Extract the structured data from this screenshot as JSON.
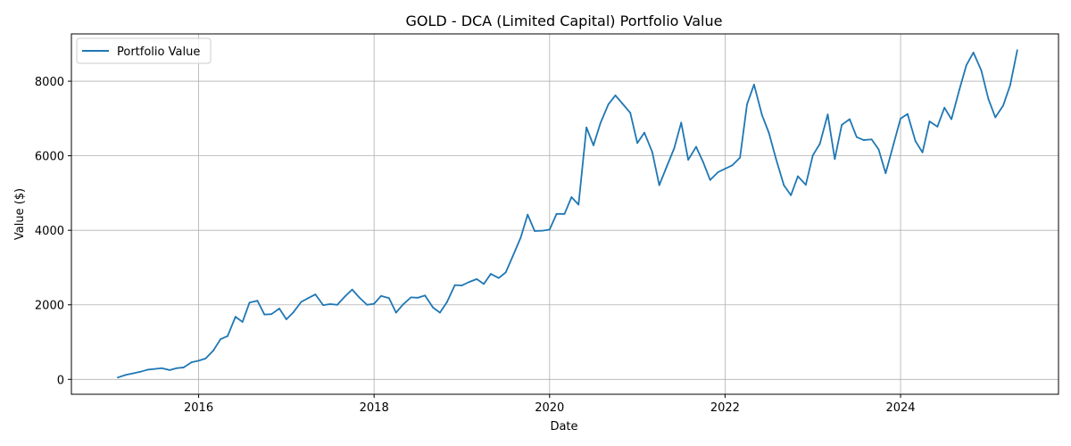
{
  "chart_data": {
    "type": "line",
    "title": "GOLD - DCA (Limited Capital) Portfolio Value",
    "xlabel": "Date",
    "ylabel": "Value ($)",
    "xlim": [
      2014.55,
      2025.8
    ],
    "ylim": [
      -400,
      9270
    ],
    "x_ticks": [
      2016,
      2018,
      2020,
      2022,
      2024
    ],
    "x_tick_labels": [
      "2016",
      "2018",
      "2020",
      "2022",
      "2024"
    ],
    "y_ticks": [
      0,
      2000,
      4000,
      6000,
      8000
    ],
    "y_tick_labels": [
      "0",
      "2000",
      "4000",
      "6000",
      "8000"
    ],
    "grid": true,
    "legend_position": "top-left",
    "series_color": "#1f77b4",
    "series": [
      {
        "name": "Portfolio Value",
        "x": [
          2015.08,
          2015.17,
          2015.25,
          2015.33,
          2015.42,
          2015.5,
          2015.58,
          2015.67,
          2015.75,
          2015.83,
          2015.92,
          2016.0,
          2016.08,
          2016.17,
          2016.25,
          2016.33,
          2016.42,
          2016.5,
          2016.58,
          2016.67,
          2016.75,
          2016.83,
          2016.92,
          2017.0,
          2017.08,
          2017.17,
          2017.25,
          2017.33,
          2017.42,
          2017.5,
          2017.58,
          2017.67,
          2017.75,
          2017.83,
          2017.92,
          2018.0,
          2018.08,
          2018.17,
          2018.25,
          2018.33,
          2018.42,
          2018.5,
          2018.58,
          2018.67,
          2018.75,
          2018.83,
          2018.92,
          2019.0,
          2019.08,
          2019.17,
          2019.25,
          2019.33,
          2019.42,
          2019.5,
          2019.58,
          2019.67,
          2019.75,
          2019.83,
          2019.92,
          2020.0,
          2020.08,
          2020.17,
          2020.25,
          2020.33,
          2020.42,
          2020.5,
          2020.58,
          2020.67,
          2020.75,
          2020.83,
          2020.92,
          2021.0,
          2021.08,
          2021.17,
          2021.25,
          2021.33,
          2021.42,
          2021.5,
          2021.58,
          2021.67,
          2021.75,
          2021.83,
          2021.92,
          2022.0,
          2022.08,
          2022.17,
          2022.25,
          2022.33,
          2022.42,
          2022.5,
          2022.58,
          2022.67,
          2022.75,
          2022.83,
          2022.92,
          2023.0,
          2023.08,
          2023.17,
          2023.25,
          2023.33,
          2023.42,
          2023.5,
          2023.58,
          2023.67,
          2023.75,
          2023.83,
          2023.92,
          2024.0,
          2024.08,
          2024.17,
          2024.25,
          2024.33,
          2024.42,
          2024.5,
          2024.58,
          2024.67,
          2024.75,
          2024.83,
          2024.92,
          2025.0,
          2025.08,
          2025.17,
          2025.25,
          2025.33
        ],
        "values": [
          50,
          120,
          160,
          200,
          260,
          280,
          300,
          250,
          300,
          320,
          460,
          500,
          560,
          780,
          1080,
          1160,
          1680,
          1540,
          2060,
          2110,
          1740,
          1750,
          1900,
          1610,
          1800,
          2080,
          2180,
          2280,
          1990,
          2020,
          2000,
          2230,
          2410,
          2200,
          2000,
          2030,
          2240,
          2180,
          1790,
          2010,
          2200,
          2190,
          2250,
          1930,
          1790,
          2070,
          2530,
          2520,
          2610,
          2690,
          2560,
          2830,
          2720,
          2870,
          3300,
          3800,
          4420,
          3980,
          3990,
          4020,
          4440,
          4440,
          4890,
          4690,
          6760,
          6280,
          6880,
          7380,
          7620,
          7400,
          7150,
          6340,
          6620,
          6100,
          5210,
          5680,
          6200,
          6890,
          5890,
          6240,
          5830,
          5350,
          5560,
          5650,
          5740,
          5950,
          7380,
          7910,
          7100,
          6610,
          5920,
          5210,
          4940,
          5450,
          5220,
          6010,
          6320,
          7110,
          5910,
          6830,
          6980,
          6500,
          6420,
          6440,
          6170,
          5530,
          6310,
          7000,
          7120,
          6390,
          6090,
          6920,
          6780,
          7290,
          6980,
          7770,
          8430,
          8770,
          8290,
          7530,
          7030,
          7350,
          7900,
          8830
        ]
      }
    ]
  }
}
